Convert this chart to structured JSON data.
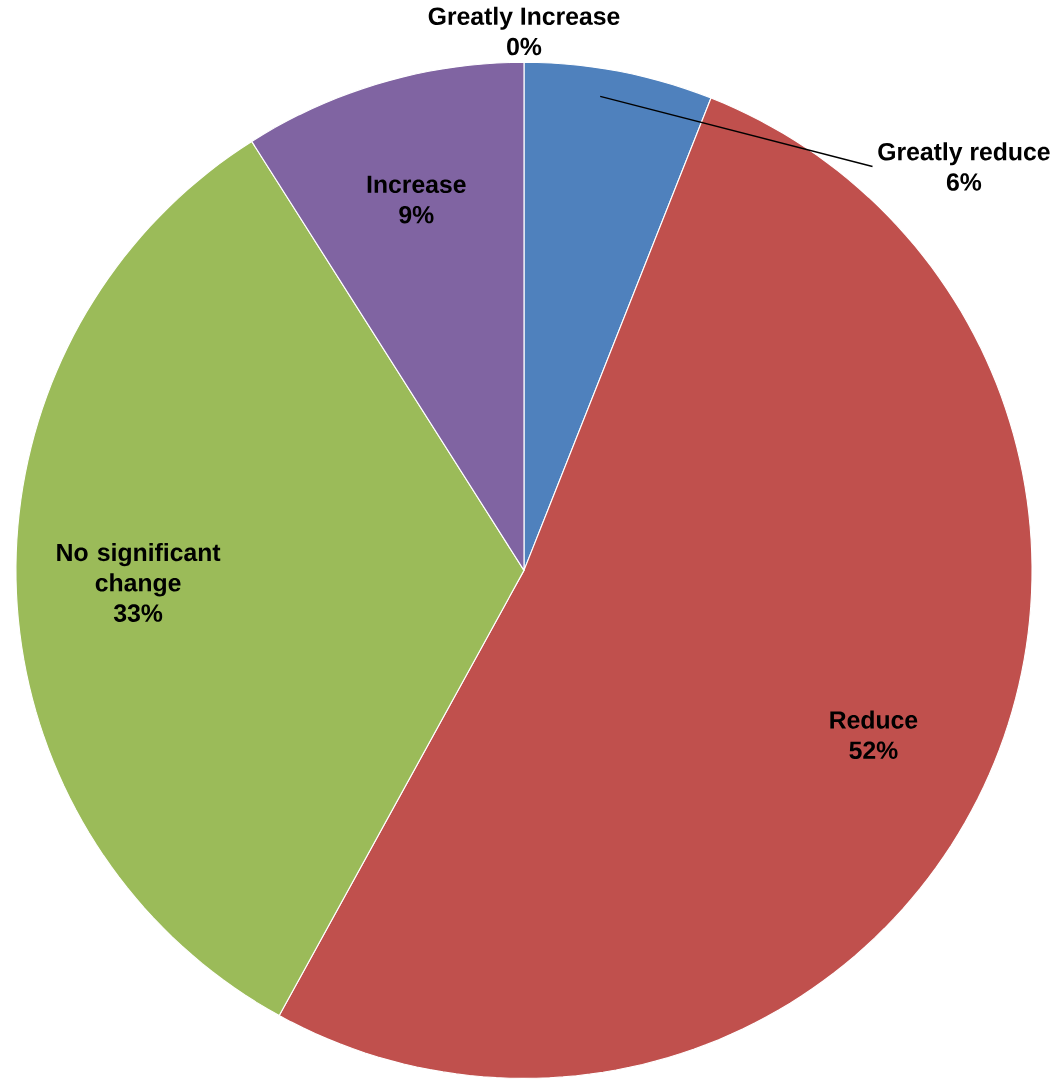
{
  "chart_data": {
    "type": "pie",
    "categories": [
      "Greatly reduce",
      "Reduce",
      "No significant change",
      "Increase",
      "Greatly Increase"
    ],
    "values": [
      6,
      52,
      33,
      9,
      0
    ],
    "value_labels": [
      "6%",
      "52%",
      "33%",
      "9%",
      "0%"
    ],
    "colors": [
      "#4f81bd",
      "#c0504d",
      "#9bbb59",
      "#8064a2",
      "#4bacc6"
    ]
  }
}
